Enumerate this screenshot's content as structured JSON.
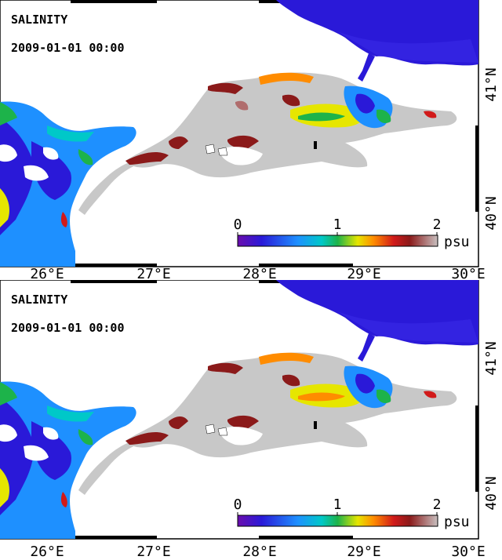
{
  "panels": [
    {
      "title": "SALINITY",
      "timestamp": "2009-01-01 00:00",
      "lon_ticks": [
        "26°E",
        "27°E",
        "28°E",
        "29°E",
        "30°E"
      ],
      "lat_ticks": [
        "41°N",
        "40°N"
      ],
      "colorbar": {
        "ticks": [
          "0",
          "1",
          "2"
        ],
        "unit": "psu"
      }
    },
    {
      "title": "SALINITY",
      "timestamp": "2009-01-01 00:00",
      "lon_ticks": [
        "26°E",
        "27°E",
        "28°E",
        "29°E",
        "30°E"
      ],
      "lat_ticks": [
        "41°N",
        "40°N"
      ],
      "colorbar": {
        "ticks": [
          "0",
          "1",
          "2"
        ],
        "unit": "psu"
      }
    }
  ],
  "colors": {
    "land_gray": "#c8c8c8",
    "black_sea": "#2a19d8",
    "frame": "#000000"
  }
}
